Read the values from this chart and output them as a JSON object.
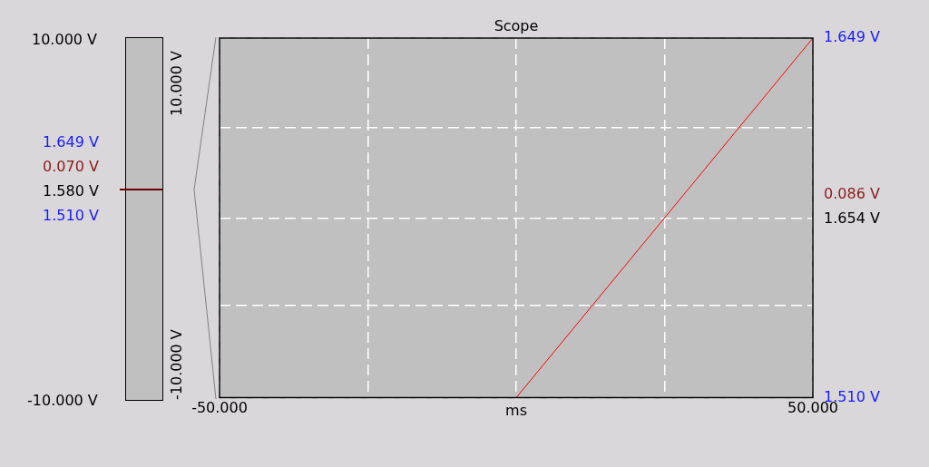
{
  "chart_data": {
    "type": "line",
    "title": "Scope",
    "xlabel": "ms",
    "x": [
      0,
      50
    ],
    "series": [
      {
        "color": "#ff0000",
        "values": [
          1.51,
          1.649
        ],
        "axis": "y2"
      }
    ],
    "xlim": [
      -50,
      50
    ],
    "xticks": [
      {
        "value": -50,
        "label": "-50.000"
      },
      {
        "value": -25,
        "label": null
      },
      {
        "value": 0,
        "label": null
      },
      {
        "value": 25,
        "label": null
      },
      {
        "value": 50,
        "label": "50.000"
      }
    ],
    "y2lim": [
      1.51,
      1.649
    ],
    "y2ticks": [
      {
        "value": 1.51,
        "label": "1.510 V"
      },
      {
        "value": 1.54575,
        "label": null
      },
      {
        "value": 1.5795,
        "label": null
      },
      {
        "value": 1.61425,
        "label": null
      },
      {
        "value": 1.649,
        "label": "1.649 V"
      }
    ],
    "grid": true,
    "annotations": [
      "10.000 V",
      "-10.000 V",
      "10.000 V",
      "-10.000 V",
      "1.649 V",
      "0.070 V",
      "1.580 V",
      "1.510 V",
      "0.086 V",
      "1.654 V"
    ]
  }
}
